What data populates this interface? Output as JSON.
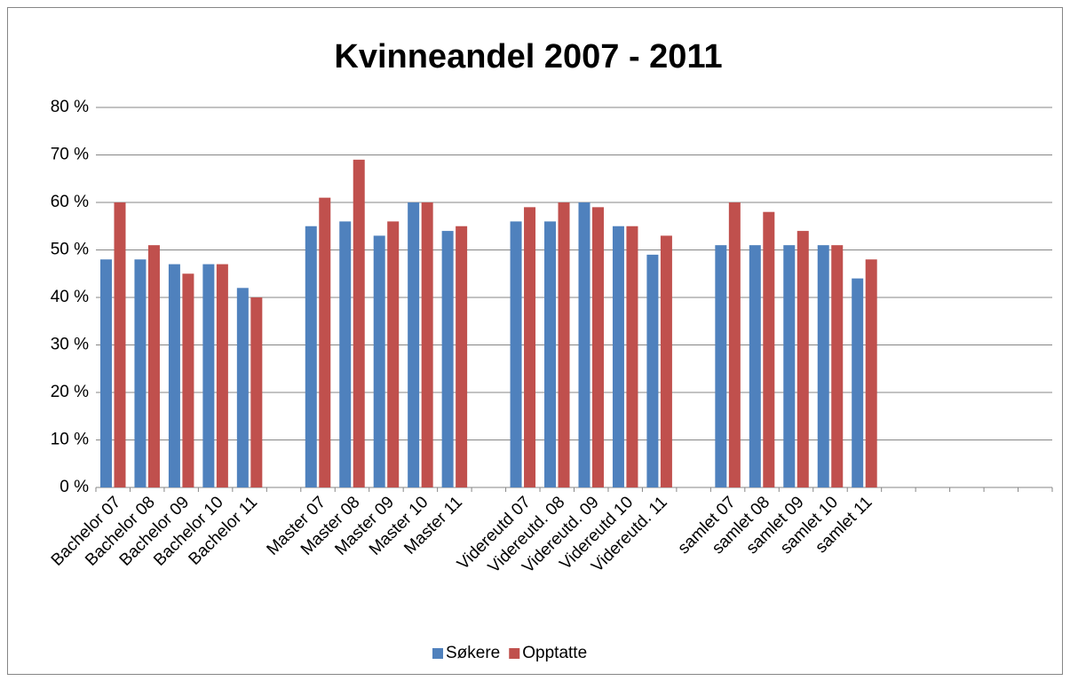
{
  "chart_data": {
    "type": "bar",
    "title": "Kvinneandel 2007 - 2011",
    "categories": [
      "Bachelor 07",
      "Bachelor 08",
      "Bachelor 09",
      "Bachelor 10",
      "Bachelor 11",
      null,
      "Master 07",
      "Master 08",
      "Master 09",
      "Master 10",
      "Master 11",
      null,
      "Videreutd 07",
      "Videreutd. 08",
      "Videreutd. 09",
      "Videreutd 10",
      "Videreutd. 11",
      null,
      "samlet 07",
      "samlet 08",
      "samlet 09",
      "samlet 10",
      "samlet 11",
      null,
      null,
      null,
      null,
      null
    ],
    "series": [
      {
        "name": "Søkere",
        "color": "#4f81bd",
        "values": [
          48,
          48,
          47,
          47,
          42,
          null,
          55,
          56,
          53,
          60,
          54,
          null,
          56,
          56,
          60,
          55,
          49,
          null,
          51,
          51,
          51,
          51,
          44,
          null,
          null,
          null,
          null,
          null
        ]
      },
      {
        "name": "Opptatte",
        "color": "#c0504d",
        "values": [
          60,
          51,
          45,
          47,
          40,
          null,
          61,
          69,
          56,
          60,
          55,
          null,
          59,
          60,
          59,
          55,
          53,
          null,
          60,
          58,
          54,
          51,
          48,
          null,
          null,
          null,
          null,
          null
        ]
      }
    ],
    "ylim": [
      0,
      80
    ],
    "yticks": [
      {
        "value": 0,
        "label": "0 %"
      },
      {
        "value": 10,
        "label": "10 %"
      },
      {
        "value": 20,
        "label": "20 %"
      },
      {
        "value": 30,
        "label": "30 %"
      },
      {
        "value": 40,
        "label": "40 %"
      },
      {
        "value": 50,
        "label": "50 %"
      },
      {
        "value": 60,
        "label": "60 %"
      },
      {
        "value": 70,
        "label": "70 %"
      },
      {
        "value": 80,
        "label": "80 %"
      }
    ],
    "grid": true,
    "legend": "bottom"
  }
}
